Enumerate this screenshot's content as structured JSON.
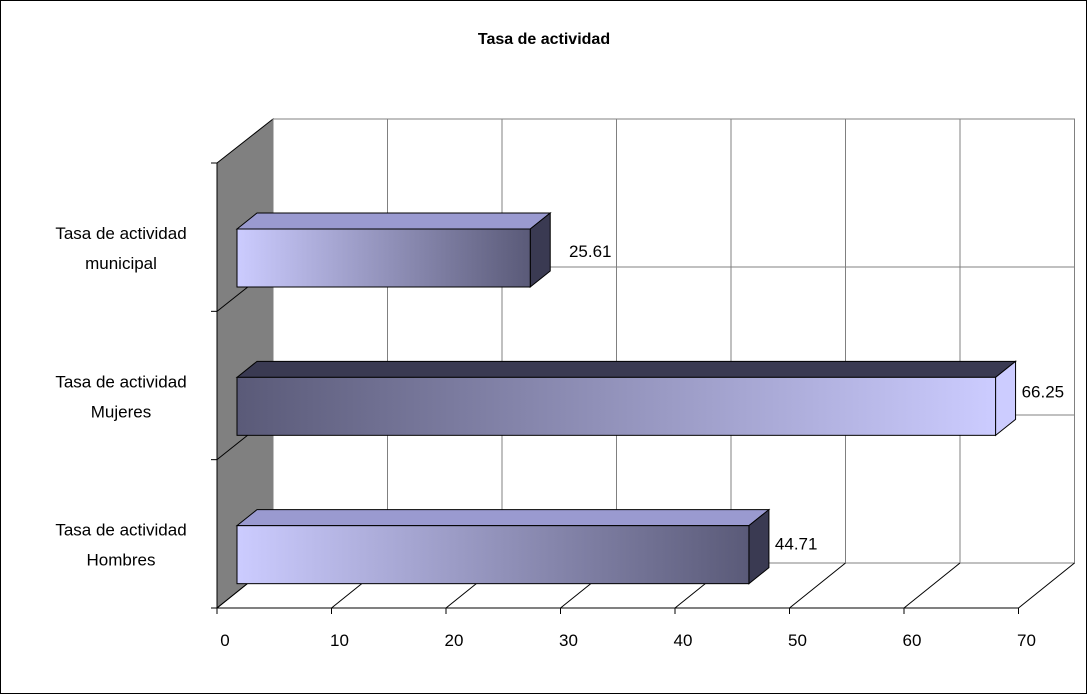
{
  "chart_data": {
    "type": "bar",
    "orientation": "horizontal",
    "style": "3d",
    "title": "Tasa de actividad",
    "categories": [
      [
        "Tasa de actividad",
        "municipal"
      ],
      [
        "Tasa de actividad",
        "Mujeres"
      ],
      [
        "Tasa de actividad",
        "Hombres"
      ]
    ],
    "values": [
      25.61,
      66.25,
      44.71
    ],
    "data_labels": [
      "25.61",
      "66.25",
      "44.71"
    ],
    "xlim": [
      0,
      70
    ],
    "x_ticks": [
      0,
      10,
      20,
      30,
      40,
      50,
      60,
      70
    ],
    "x_tick_labels": [
      "0",
      "10",
      "20",
      "30",
      "40",
      "50",
      "60",
      "70"
    ],
    "grid": true,
    "legend": "none",
    "colors": {
      "light": "#ccccff",
      "dark": "#3a3a52",
      "wall": "#808080"
    }
  }
}
